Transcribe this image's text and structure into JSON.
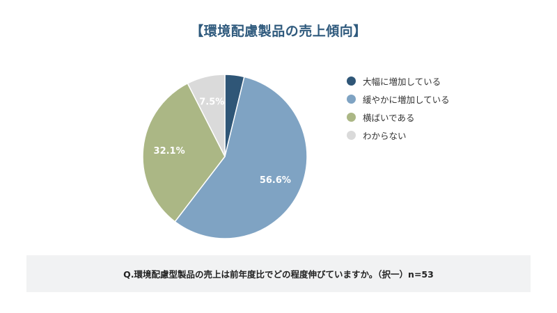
{
  "chart_data": {
    "type": "pie",
    "title": "【環境配慮製品の売上傾向】",
    "categories": [
      "大幅に増加している",
      "緩やかに増加している",
      "横ばいである",
      "わからない"
    ],
    "values": [
      3.8,
      56.6,
      32.1,
      7.5
    ],
    "value_labels": [
      "",
      "56.6%",
      "32.1%",
      "7.5%"
    ],
    "colors": [
      "#2f5677",
      "#7fa3c3",
      "#abb785",
      "#dadada"
    ],
    "legend_position": "right"
  },
  "question": "Q.環境配慮型製品の売上は前年度比でどの程度伸びていますか。（択一）n=53"
}
